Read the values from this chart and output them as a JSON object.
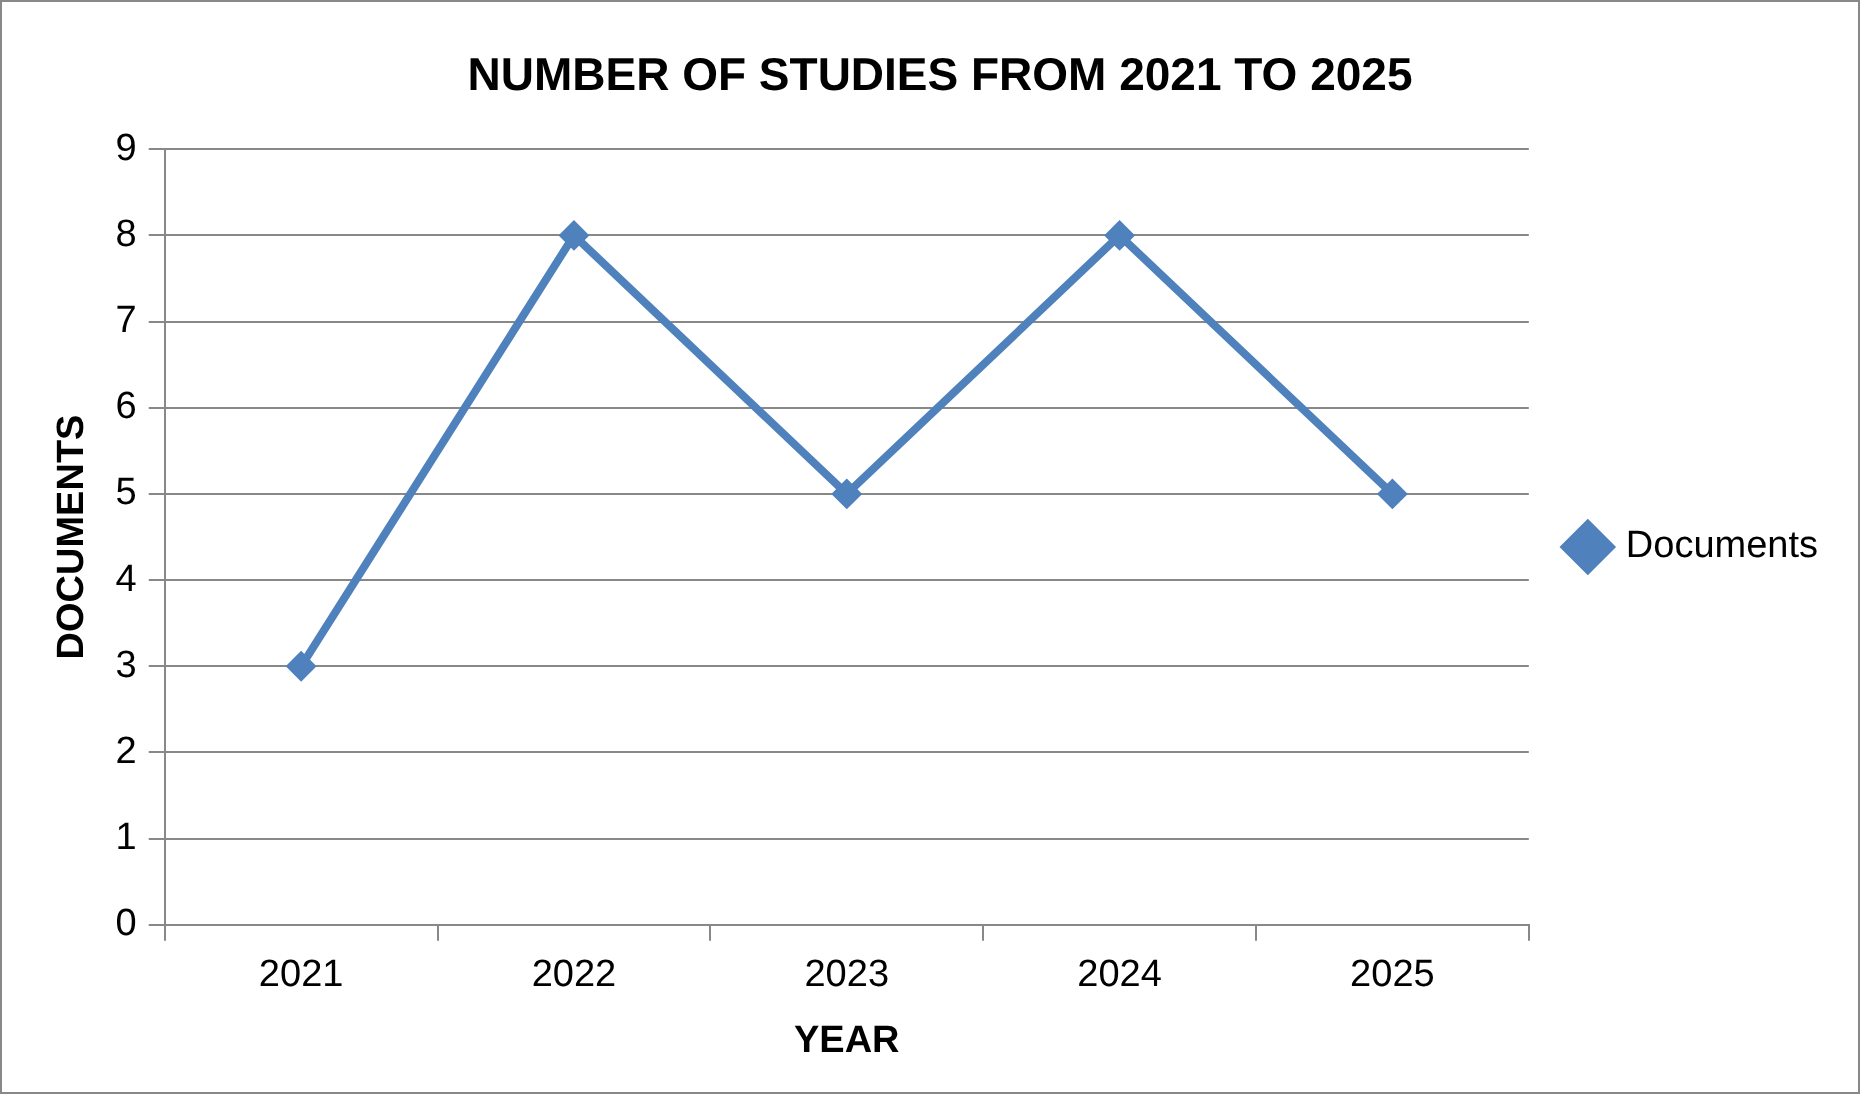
{
  "chart_data": {
    "type": "line",
    "title": "NUMBER OF STUDIES FROM 2021 TO 2025",
    "xlabel": "YEAR",
    "ylabel": "DOCUMENTS",
    "categories": [
      "2021",
      "2022",
      "2023",
      "2024",
      "2025"
    ],
    "series": [
      {
        "name": "Documents",
        "color": "#4f81bd",
        "values": [
          3,
          8,
          5,
          8,
          5
        ]
      }
    ],
    "ylim": [
      0,
      9
    ],
    "yticks": [
      0,
      1,
      2,
      3,
      4,
      5,
      6,
      7,
      8,
      9
    ],
    "grid": "y",
    "legend": "right",
    "marker": "diamond",
    "line_style": "solid"
  }
}
